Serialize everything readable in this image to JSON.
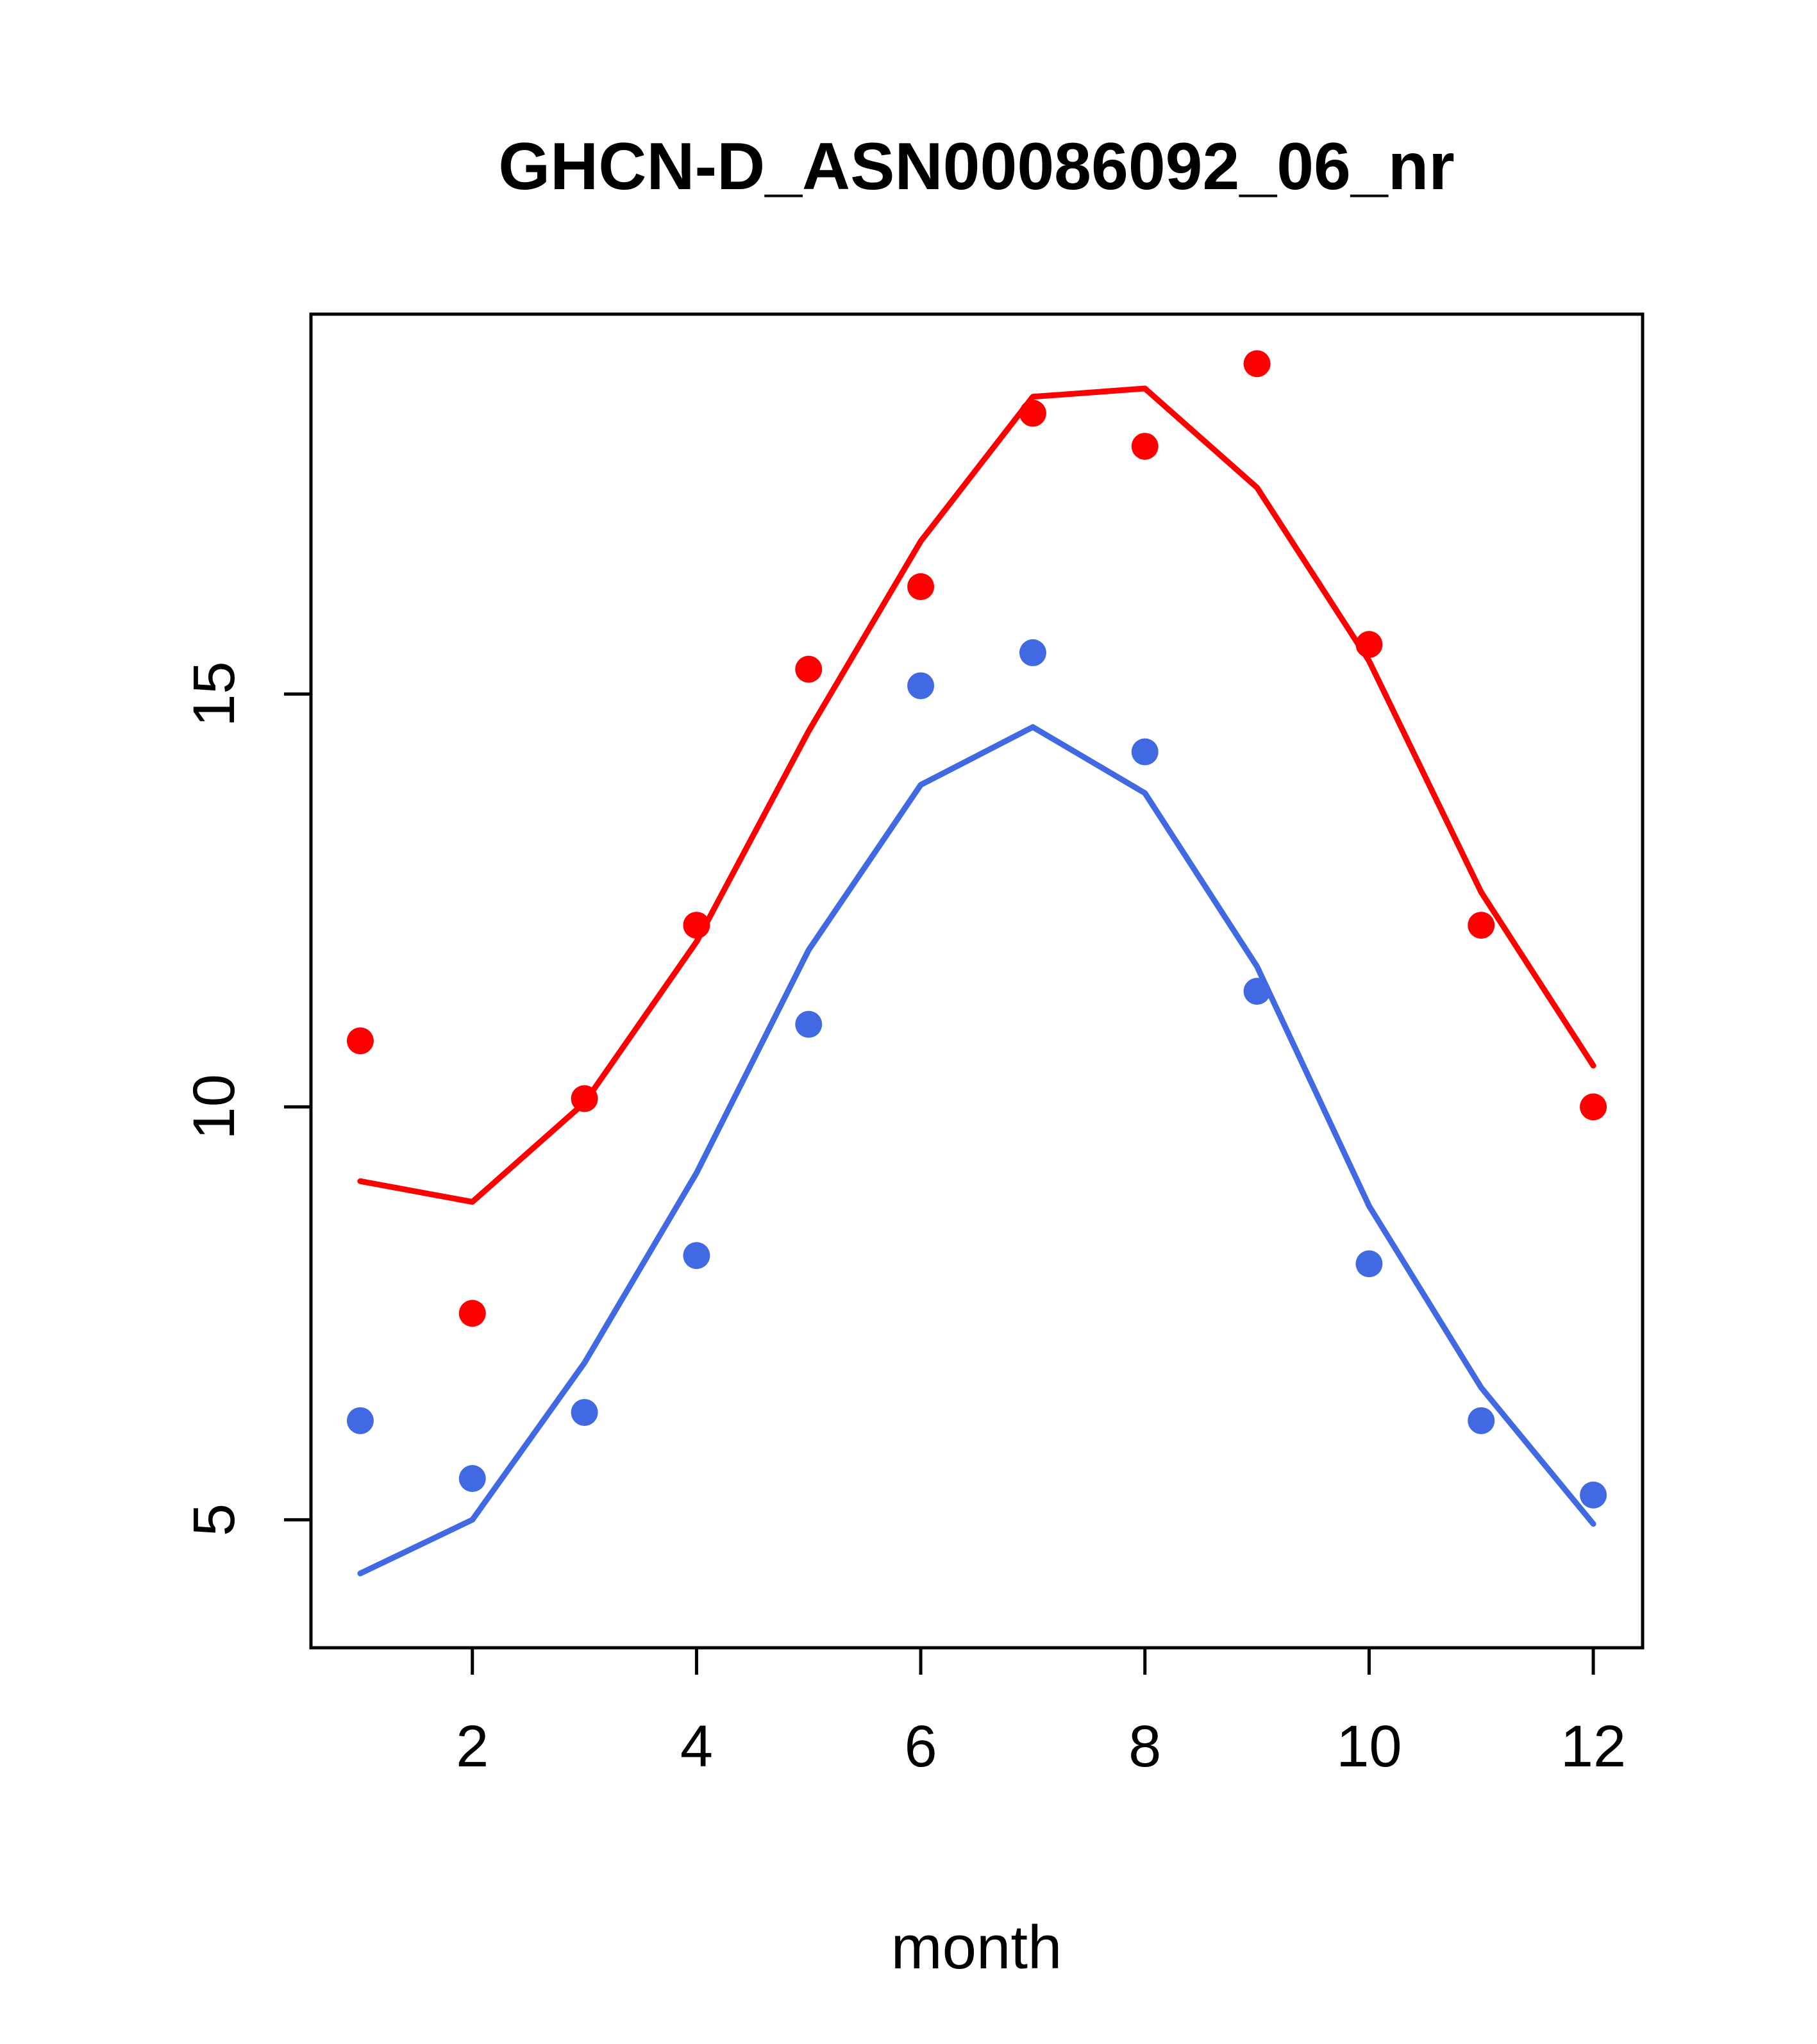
{
  "chart_data": {
    "type": "line",
    "title": "GHCN-D_ASN00086092_06_nr",
    "xlabel": "month",
    "ylabel": "",
    "x": [
      1,
      2,
      3,
      4,
      5,
      6,
      7,
      8,
      9,
      10,
      11,
      12
    ],
    "xticks": [
      2,
      4,
      6,
      8,
      10,
      12
    ],
    "yticks": [
      5,
      10,
      15
    ],
    "xlim": [
      0.56,
      12.44
    ],
    "ylim": [
      3.45,
      19.6
    ],
    "grid": false,
    "legend": "none",
    "colors": {
      "red": "#ff0000",
      "blue": "#4169e1",
      "axis": "#000000"
    },
    "series": [
      {
        "name": "red-line",
        "type": "line",
        "color": "#ff0000",
        "values": [
          9.1,
          8.85,
          10.05,
          12.0,
          14.55,
          16.85,
          18.6,
          18.7,
          17.5,
          15.4,
          12.6,
          10.5
        ]
      },
      {
        "name": "blue-line",
        "type": "line",
        "color": "#4169e1",
        "values": [
          4.35,
          5.0,
          6.9,
          9.2,
          11.9,
          13.9,
          14.6,
          13.8,
          11.7,
          8.8,
          6.6,
          4.95
        ]
      },
      {
        "name": "red-points",
        "type": "points",
        "color": "#ff0000",
        "values": [
          10.8,
          7.5,
          10.1,
          12.2,
          15.3,
          16.3,
          18.4,
          18.0,
          19.0,
          15.6,
          12.2,
          10.0
        ]
      },
      {
        "name": "blue-points",
        "type": "points",
        "color": "#4169e1",
        "values": [
          6.2,
          5.5,
          6.3,
          8.2,
          11.0,
          15.1,
          15.5,
          14.3,
          11.4,
          8.1,
          6.2,
          5.3
        ]
      }
    ]
  }
}
